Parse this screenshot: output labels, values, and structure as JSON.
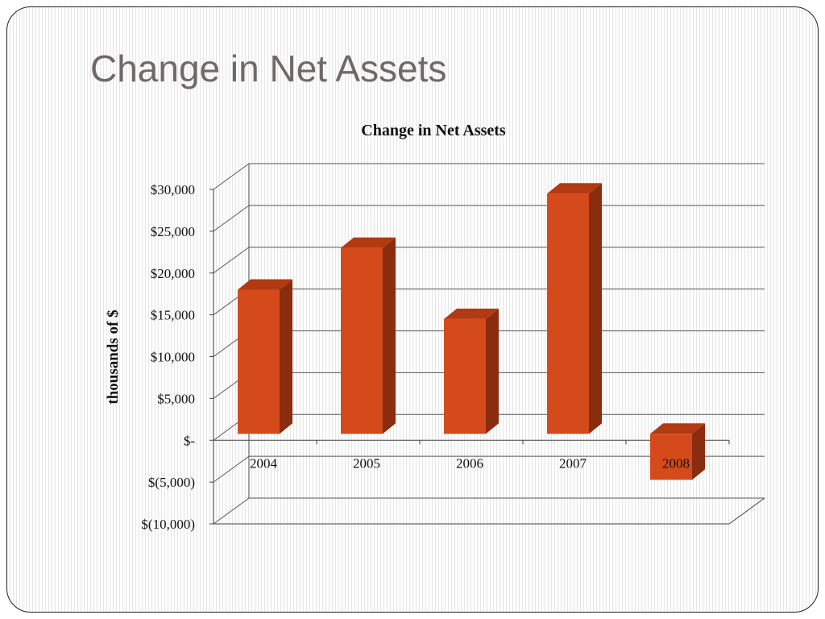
{
  "slide": {
    "title": "Change in Net Assets"
  },
  "chart_data": {
    "type": "bar",
    "title": "Change in Net Assets",
    "ylabel": "thousands of $",
    "xlabel": "",
    "categories": [
      "2004",
      "2005",
      "2006",
      "2007",
      "2008"
    ],
    "values": [
      18000,
      23000,
      14500,
      29500,
      -5500
    ],
    "ylim": [
      -10000,
      30000
    ],
    "yticks": [
      30000,
      25000,
      20000,
      15000,
      10000,
      5000,
      0,
      -5000,
      -10000
    ],
    "ytick_labels": [
      "$30,000",
      "$25,000",
      "$20,000",
      "$15,000",
      "$10,000",
      "$5,000",
      "$-",
      "$(5,000)",
      "$(10,000)"
    ],
    "three_d": true,
    "grid": true,
    "legend": "none",
    "colors": {
      "bar_front": "#d44a1a",
      "bar_side": "#8a2c0e",
      "bar_top": "#b23a12",
      "grid": "#555555",
      "axis": "#444444"
    }
  }
}
